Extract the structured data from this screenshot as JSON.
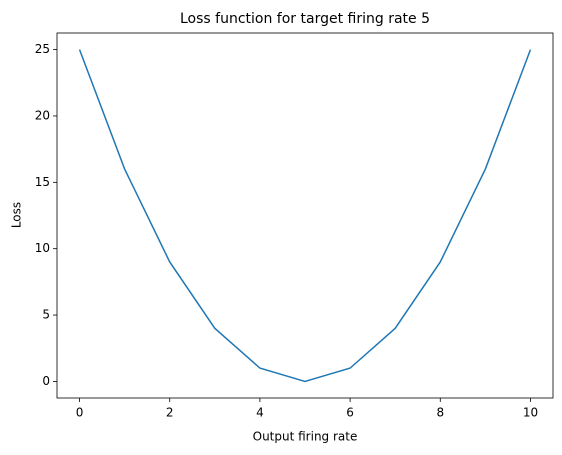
{
  "chart_data": {
    "type": "line",
    "title": "Loss function for target firing rate 5",
    "x_label": "Output firing rate",
    "y_label": "Loss",
    "x": [
      0,
      1,
      2,
      3,
      4,
      5,
      6,
      7,
      8,
      9,
      10
    ],
    "series": [
      {
        "name": "Loss",
        "color": "#1f77b4",
        "values": [
          25,
          16,
          9,
          4,
          1,
          0,
          1,
          4,
          9,
          16,
          25
        ]
      }
    ],
    "xlim": [
      -0.5,
      10.5
    ],
    "ylim": [
      -1.25,
      26.25
    ],
    "xticks": [
      0,
      2,
      4,
      6,
      8,
      10
    ],
    "yticks": [
      0,
      5,
      10,
      15,
      20,
      25
    ],
    "grid": false
  }
}
